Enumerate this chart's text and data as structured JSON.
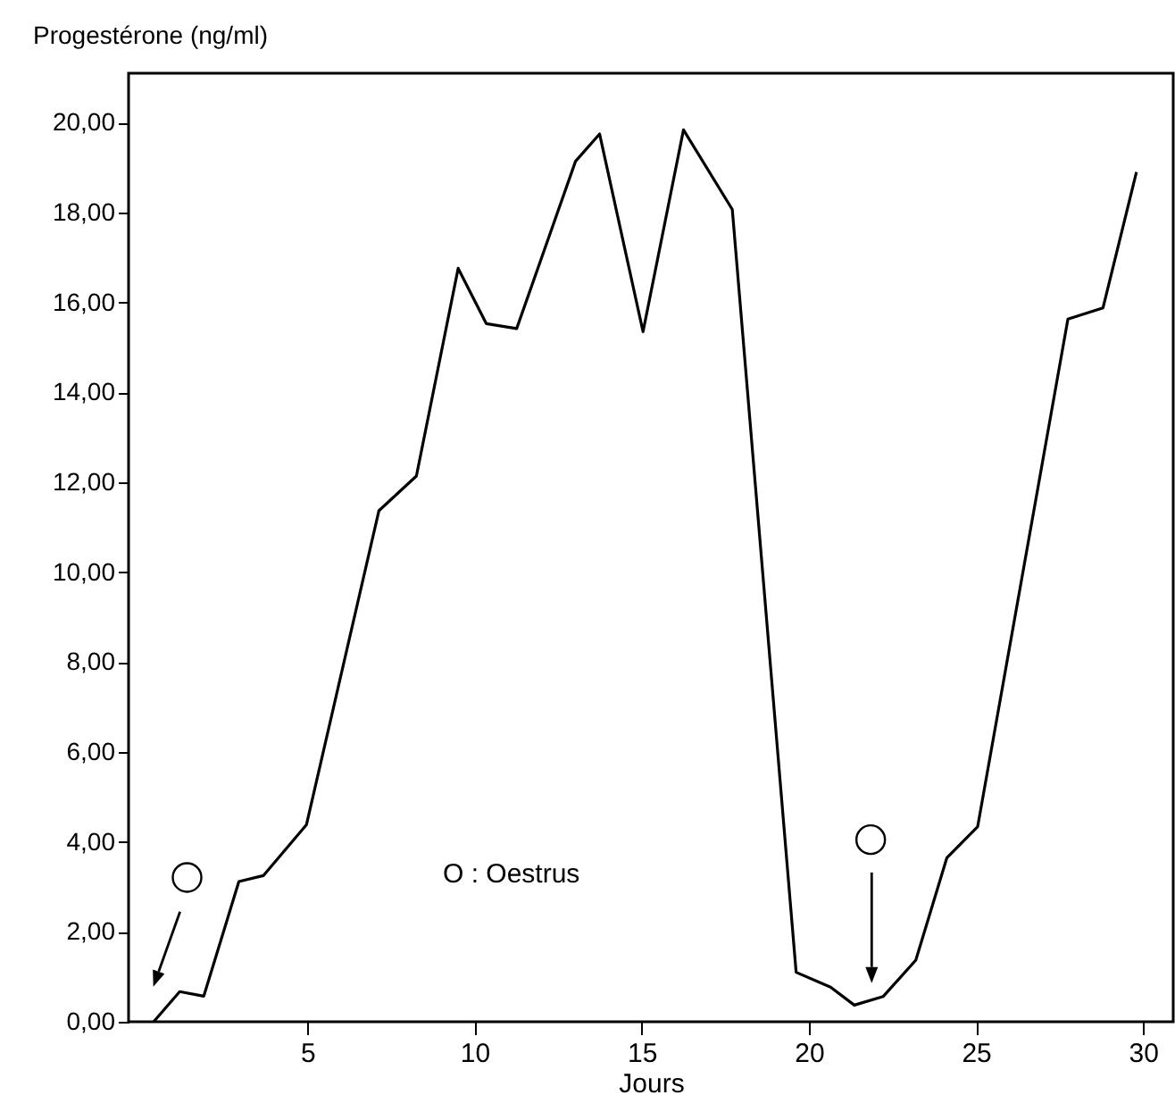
{
  "chart_data": {
    "type": "line",
    "ylabel": "Progestérone (ng/ml)",
    "xlabel": "Jours",
    "annotations": [
      "O : Oestrus"
    ],
    "x": [
      0.4,
      1.18,
      1.9,
      2.95,
      3.68,
      4.97,
      7.14,
      8.26,
      9.51,
      10.35,
      11.26,
      13.02,
      13.74,
      15.04,
      16.25,
      17.71,
      19.62,
      20.65,
      21.36,
      22.22,
      23.2,
      24.13,
      25.05,
      27.75,
      28.8,
      29.8
    ],
    "series": [
      {
        "color": "#000000",
        "values": [
          0,
          0.67,
          0.57,
          3.12,
          3.25,
          4.38,
          11.37,
          12.14,
          16.76,
          15.53,
          15.42,
          19.14,
          19.75,
          15.35,
          19.84,
          18.07,
          1.1,
          0.77,
          0.37,
          0.56,
          1.37,
          3.65,
          4.34,
          15.63,
          15.88,
          18.9
        ]
      }
    ],
    "xlim": [
      -0.35,
      30.9
    ],
    "xticks": [
      5,
      10,
      15,
      20,
      25,
      30
    ],
    "ylim": [
      0,
      21.1
    ],
    "yticks": [
      {
        "value": 0,
        "label": "0,00"
      },
      {
        "value": 2,
        "label": "2,00"
      },
      {
        "value": 4,
        "label": "4,00"
      },
      {
        "value": 6,
        "label": "6,00"
      },
      {
        "value": 8,
        "label": "8,00"
      },
      {
        "value": 10,
        "label": "10,00"
      },
      {
        "value": 12,
        "label": "12,00"
      },
      {
        "value": 14,
        "label": "14,00"
      },
      {
        "value": 16,
        "label": "16,00"
      },
      {
        "value": 18,
        "label": "18,00"
      },
      {
        "value": 20,
        "label": "20,00"
      }
    ],
    "grid": false,
    "marker": "none",
    "line_style": "solid"
  }
}
